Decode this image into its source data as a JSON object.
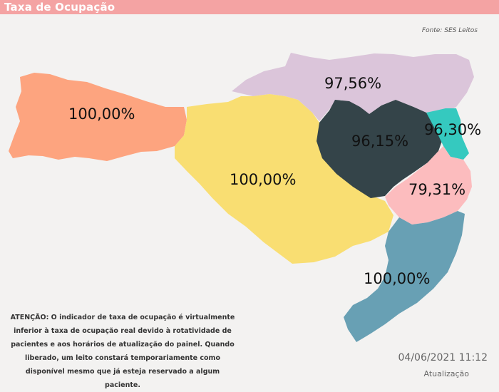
{
  "header": {
    "title": "Taxa de Ocupação"
  },
  "source": "Fonte: SES Leitos",
  "regions": [
    {
      "id": "oeste",
      "value": "100,00%",
      "color": "#fda47f"
    },
    {
      "id": "planalto-norte",
      "value": "97,56%",
      "color": "#dbc5da"
    },
    {
      "id": "meio-oeste-serra",
      "value": "100,00%",
      "color": "#f9de72"
    },
    {
      "id": "vale-itajai",
      "value": "96,15%",
      "color": "#344449"
    },
    {
      "id": "foz-itajai",
      "value": "96,30%",
      "color": "#35c9bf"
    },
    {
      "id": "grande-florianopolis",
      "value": "79,31%",
      "color": "#fcbcbe"
    },
    {
      "id": "sul",
      "value": "100,00%",
      "color": "#68a0b4"
    }
  ],
  "warning": "ATENÇÃO: O indicador de taxa de ocupação é virtualmente inferior à taxa de ocupação real devido à rotatividade de pacientes e aos horários de atualização do painel.  Quando liberado, um leito constará temporariamente como disponível mesmo que já esteja reservado a algum paciente.",
  "update": {
    "timestamp": "04/06/2021 11:12",
    "label": "Atualização"
  }
}
